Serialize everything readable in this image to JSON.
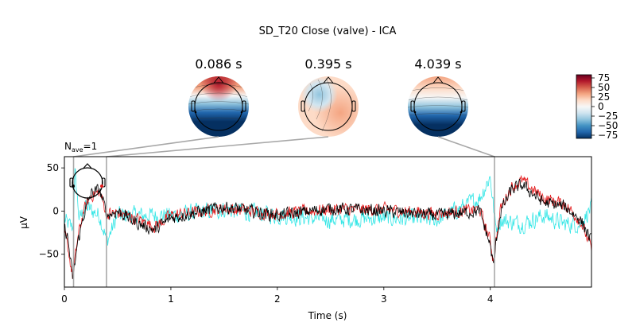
{
  "chart_data": {
    "type": "line",
    "title": "SD_T20 Close (valve) - ICA",
    "xlabel": "Time (s)",
    "ylabel": "µV",
    "xlim": [
      0,
      4.95
    ],
    "ylim": [
      -88,
      63
    ],
    "x_ticks": [
      0,
      1,
      2,
      3,
      4
    ],
    "y_ticks": [
      50,
      0,
      -50
    ],
    "n_ave_base": "N",
    "n_ave_sub": "ave",
    "n_ave_value": "=1",
    "series_colors": [
      "#000000",
      "#e41a1c",
      "#33e6e6"
    ],
    "series_keypoints": [
      [
        [
          0,
          -20
        ],
        [
          0.03,
          -30
        ],
        [
          0.08,
          -80
        ],
        [
          0.12,
          -40
        ],
        [
          0.18,
          -5
        ],
        [
          0.25,
          20
        ],
        [
          0.33,
          25
        ],
        [
          0.4,
          -5
        ],
        [
          0.5,
          0
        ],
        [
          0.7,
          -15
        ],
        [
          0.85,
          -22
        ],
        [
          1.0,
          -8
        ],
        [
          1.5,
          5
        ],
        [
          2.0,
          -5
        ],
        [
          2.5,
          3
        ],
        [
          3.0,
          0
        ],
        [
          3.5,
          -5
        ],
        [
          3.9,
          0
        ],
        [
          4.0,
          -40
        ],
        [
          4.03,
          -65
        ],
        [
          4.06,
          -30
        ],
        [
          4.1,
          0
        ],
        [
          4.2,
          25
        ],
        [
          4.3,
          30
        ],
        [
          4.5,
          10
        ],
        [
          4.7,
          5
        ],
        [
          4.85,
          -10
        ],
        [
          4.95,
          -35
        ]
      ],
      [
        [
          0,
          -25
        ],
        [
          0.03,
          -40
        ],
        [
          0.08,
          -78
        ],
        [
          0.12,
          -35
        ],
        [
          0.18,
          0
        ],
        [
          0.25,
          18
        ],
        [
          0.33,
          22
        ],
        [
          0.4,
          -3
        ],
        [
          0.5,
          -2
        ],
        [
          0.7,
          -10
        ],
        [
          0.85,
          -18
        ],
        [
          1.0,
          -5
        ],
        [
          1.5,
          3
        ],
        [
          2.0,
          -3
        ],
        [
          2.5,
          2
        ],
        [
          3.0,
          2
        ],
        [
          3.5,
          -3
        ],
        [
          3.9,
          2
        ],
        [
          4.0,
          -35
        ],
        [
          4.03,
          -58
        ],
        [
          4.06,
          -28
        ],
        [
          4.1,
          5
        ],
        [
          4.2,
          28
        ],
        [
          4.3,
          35
        ],
        [
          4.5,
          15
        ],
        [
          4.7,
          8
        ],
        [
          4.85,
          -12
        ],
        [
          4.95,
          -45
        ]
      ],
      [
        [
          0,
          -10
        ],
        [
          0.03,
          -15
        ],
        [
          0.08,
          -20
        ],
        [
          0.1,
          45
        ],
        [
          0.14,
          -10
        ],
        [
          0.2,
          5
        ],
        [
          0.33,
          -5
        ],
        [
          0.4,
          -35
        ],
        [
          0.5,
          -5
        ],
        [
          1.0,
          -5
        ],
        [
          1.5,
          2
        ],
        [
          2.0,
          -5
        ],
        [
          2.5,
          -10
        ],
        [
          3.0,
          -8
        ],
        [
          3.5,
          -10
        ],
        [
          3.9,
          15
        ],
        [
          4.0,
          40
        ],
        [
          4.05,
          -20
        ],
        [
          4.1,
          -10
        ],
        [
          4.3,
          -15
        ],
        [
          4.5,
          -5
        ],
        [
          4.7,
          -15
        ],
        [
          4.85,
          -15
        ],
        [
          4.95,
          5
        ]
      ]
    ],
    "series_noise": [
      10,
      10,
      14
    ]
  },
  "topomaps": [
    {
      "time_label": "0.086 s",
      "time_s": 0.086
    },
    {
      "time_label": "0.395 s",
      "time_s": 0.395
    },
    {
      "time_label": "4.039 s",
      "time_s": 4.039
    }
  ],
  "colorbar": {
    "ticks": [
      "75",
      "50",
      "25",
      "0",
      "−25",
      "−50",
      "−75"
    ],
    "colors": [
      "#67001f",
      "#b2182b",
      "#d6604d",
      "#f4a582",
      "#fddbc7",
      "#f7f7f7",
      "#d1e5f0",
      "#92c5de",
      "#4393c3",
      "#2166ac",
      "#053061"
    ]
  }
}
